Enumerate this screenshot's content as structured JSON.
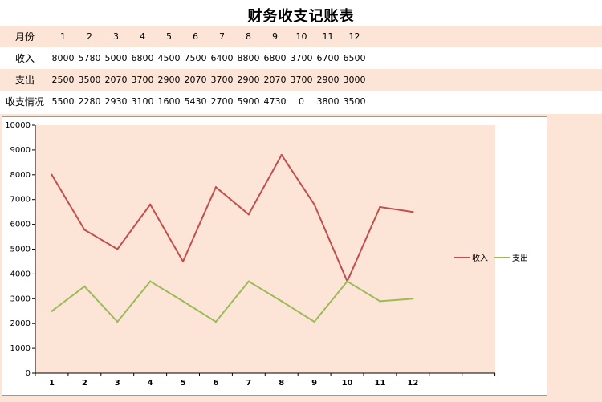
{
  "title": "财务收支记账表",
  "table": {
    "rows": [
      {
        "label": "月份",
        "cells": [
          "1",
          "2",
          "3",
          "4",
          "5",
          "6",
          "7",
          "8",
          "9",
          "10",
          "11",
          "12"
        ]
      },
      {
        "label": "收入",
        "cells": [
          "8000",
          "5780",
          "5000",
          "6800",
          "4500",
          "7500",
          "6400",
          "8800",
          "6800",
          "3700",
          "6700",
          "6500"
        ]
      },
      {
        "label": "支出",
        "cells": [
          "2500",
          "3500",
          "2070",
          "3700",
          "2900",
          "2070",
          "3700",
          "2900",
          "2070",
          "3700",
          "2900",
          "3000"
        ]
      },
      {
        "label": "收支情况",
        "cells": [
          "5500",
          "2280",
          "2930",
          "3100",
          "1600",
          "5430",
          "2700",
          "5900",
          "4730",
          "0",
          "3800",
          "3500"
        ]
      }
    ]
  },
  "chart_data": {
    "type": "line",
    "x": [
      1,
      2,
      3,
      4,
      5,
      6,
      7,
      8,
      9,
      10,
      11,
      12
    ],
    "series": [
      {
        "name": "收入",
        "color": "#c0504d",
        "values": [
          8000,
          5780,
          5000,
          6800,
          4500,
          7500,
          6400,
          8800,
          6800,
          3700,
          6700,
          6500
        ]
      },
      {
        "name": "支出",
        "color": "#9bbb59",
        "values": [
          2500,
          3500,
          2070,
          3700,
          2900,
          2070,
          3700,
          2900,
          2070,
          3700,
          2900,
          3000
        ]
      }
    ],
    "ylim": [
      0,
      10000
    ],
    "yticks": [
      "0",
      "1000",
      "2000",
      "3000",
      "4000",
      "5000",
      "6000",
      "7000",
      "8000",
      "9000",
      "10000"
    ],
    "xticks": [
      "1",
      "2",
      "3",
      "4",
      "5",
      "6",
      "7",
      "8",
      "9",
      "10",
      "11",
      "12"
    ],
    "plot_background": "#fce4d6",
    "legend": "right",
    "grid": false
  }
}
